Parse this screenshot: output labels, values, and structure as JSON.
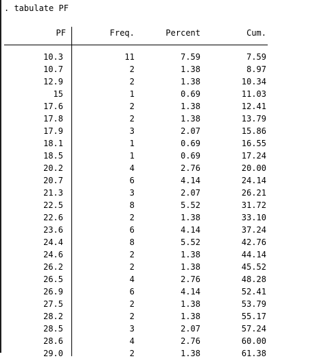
{
  "command": ". tabulate PF",
  "headers": {
    "pf": "PF",
    "freq": "Freq.",
    "percent": "Percent",
    "cum": "Cum."
  },
  "rows": [
    {
      "pf": "10.3",
      "freq": "11",
      "percent": "7.59",
      "cum": "7.59"
    },
    {
      "pf": "10.7",
      "freq": "2",
      "percent": "1.38",
      "cum": "8.97"
    },
    {
      "pf": "12.9",
      "freq": "2",
      "percent": "1.38",
      "cum": "10.34"
    },
    {
      "pf": "15",
      "freq": "1",
      "percent": "0.69",
      "cum": "11.03"
    },
    {
      "pf": "17.6",
      "freq": "2",
      "percent": "1.38",
      "cum": "12.41"
    },
    {
      "pf": "17.8",
      "freq": "2",
      "percent": "1.38",
      "cum": "13.79"
    },
    {
      "pf": "17.9",
      "freq": "3",
      "percent": "2.07",
      "cum": "15.86"
    },
    {
      "pf": "18.1",
      "freq": "1",
      "percent": "0.69",
      "cum": "16.55"
    },
    {
      "pf": "18.5",
      "freq": "1",
      "percent": "0.69",
      "cum": "17.24"
    },
    {
      "pf": "20.2",
      "freq": "4",
      "percent": "2.76",
      "cum": "20.00"
    },
    {
      "pf": "20.7",
      "freq": "6",
      "percent": "4.14",
      "cum": "24.14"
    },
    {
      "pf": "21.3",
      "freq": "3",
      "percent": "2.07",
      "cum": "26.21"
    },
    {
      "pf": "22.5",
      "freq": "8",
      "percent": "5.52",
      "cum": "31.72"
    },
    {
      "pf": "22.6",
      "freq": "2",
      "percent": "1.38",
      "cum": "33.10"
    },
    {
      "pf": "23.6",
      "freq": "6",
      "percent": "4.14",
      "cum": "37.24"
    },
    {
      "pf": "24.4",
      "freq": "8",
      "percent": "5.52",
      "cum": "42.76"
    },
    {
      "pf": "24.6",
      "freq": "2",
      "percent": "1.38",
      "cum": "44.14"
    },
    {
      "pf": "26.2",
      "freq": "2",
      "percent": "1.38",
      "cum": "45.52"
    },
    {
      "pf": "26.5",
      "freq": "4",
      "percent": "2.76",
      "cum": "48.28"
    },
    {
      "pf": "26.9",
      "freq": "6",
      "percent": "4.14",
      "cum": "52.41"
    },
    {
      "pf": "27.5",
      "freq": "2",
      "percent": "1.38",
      "cum": "53.79"
    },
    {
      "pf": "28.2",
      "freq": "2",
      "percent": "1.38",
      "cum": "55.17"
    },
    {
      "pf": "28.5",
      "freq": "3",
      "percent": "2.07",
      "cum": "57.24"
    },
    {
      "pf": "28.6",
      "freq": "4",
      "percent": "2.76",
      "cum": "60.00"
    },
    {
      "pf": "29.0",
      "freq": "2",
      "percent": "1.38",
      "cum": "61.38"
    }
  ]
}
